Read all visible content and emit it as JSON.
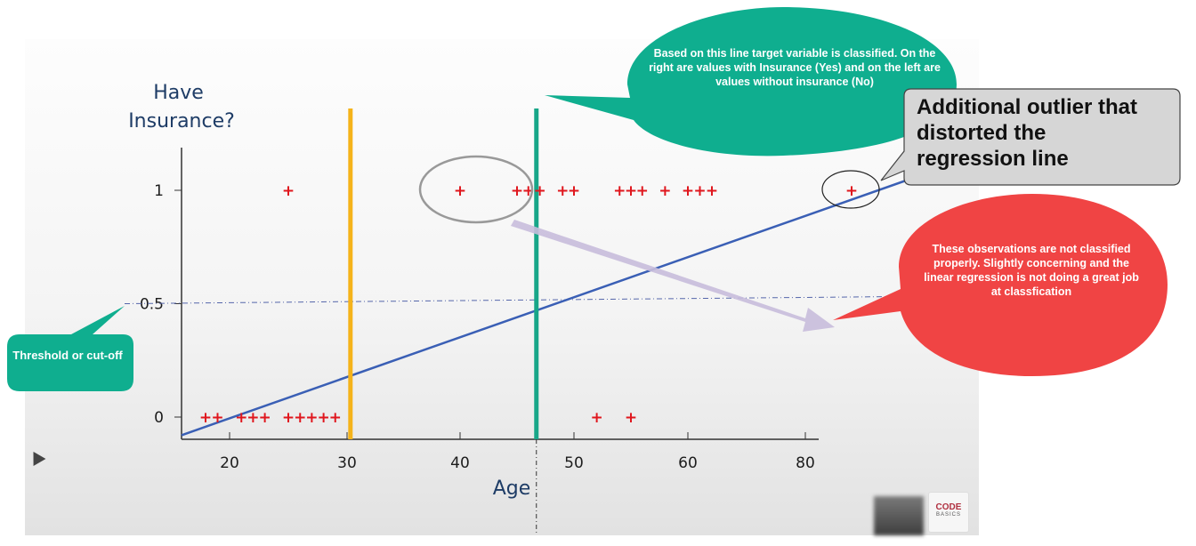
{
  "chart_data": {
    "type": "scatter",
    "ylabel": "Have\nInsurance?",
    "xlabel": "Age",
    "x_ticks": [
      20,
      30,
      40,
      50,
      60,
      80
    ],
    "y_ticks": [
      0,
      0.5,
      1
    ],
    "series": [
      {
        "marker": "+",
        "color": "#e0161d",
        "points": [
          {
            "x": 18,
            "y": 0
          },
          {
            "x": 19,
            "y": 0
          },
          {
            "x": 21,
            "y": 0
          },
          {
            "x": 22,
            "y": 0
          },
          {
            "x": 23,
            "y": 0
          },
          {
            "x": 25,
            "y": 0
          },
          {
            "x": 26,
            "y": 0
          },
          {
            "x": 27,
            "y": 0
          },
          {
            "x": 28,
            "y": 0
          },
          {
            "x": 29,
            "y": 0
          },
          {
            "x": 52,
            "y": 0
          },
          {
            "x": 55,
            "y": 0
          },
          {
            "x": 25,
            "y": 1
          },
          {
            "x": 40,
            "y": 1
          },
          {
            "x": 45,
            "y": 1
          },
          {
            "x": 46,
            "y": 1
          },
          {
            "x": 47,
            "y": 1
          },
          {
            "x": 49,
            "y": 1
          },
          {
            "x": 50,
            "y": 1
          },
          {
            "x": 54,
            "y": 1
          },
          {
            "x": 55,
            "y": 1
          },
          {
            "x": 56,
            "y": 1
          },
          {
            "x": 58,
            "y": 1
          },
          {
            "x": 60,
            "y": 1
          },
          {
            "x": 61,
            "y": 1
          },
          {
            "x": 62,
            "y": 1
          },
          {
            "x": 85,
            "y": 1
          }
        ]
      }
    ],
    "regression_line": {
      "color": "#3a5fb5",
      "from": {
        "x": 16,
        "y": -0.08
      },
      "to": {
        "x": 97,
        "y": 1.17
      }
    },
    "threshold": {
      "y": 0.5,
      "style": "dash-dot"
    },
    "decision_lines": [
      {
        "x": 30.3,
        "color": "#f5b31a"
      },
      {
        "x": 46.7,
        "color": "#17a688"
      }
    ]
  },
  "annotations": {
    "teal_callout": "Based on this line target variable is classified. On the right are values with Insurance (Yes) and on the left are values without insurance (No)",
    "grey_callout": "Additional outlier that distorted the regression line",
    "red_callout": "These observations are not classified properly. Slightly concerning and the linear regression is not doing a great job at classfication",
    "threshold_callout": "Threshold or cut-off"
  },
  "colors": {
    "teal": "#0fae8f",
    "red": "#f04444",
    "grey": "#d6d6d6"
  },
  "logo": {
    "line1": "CODE",
    "line2": "BASICS"
  }
}
